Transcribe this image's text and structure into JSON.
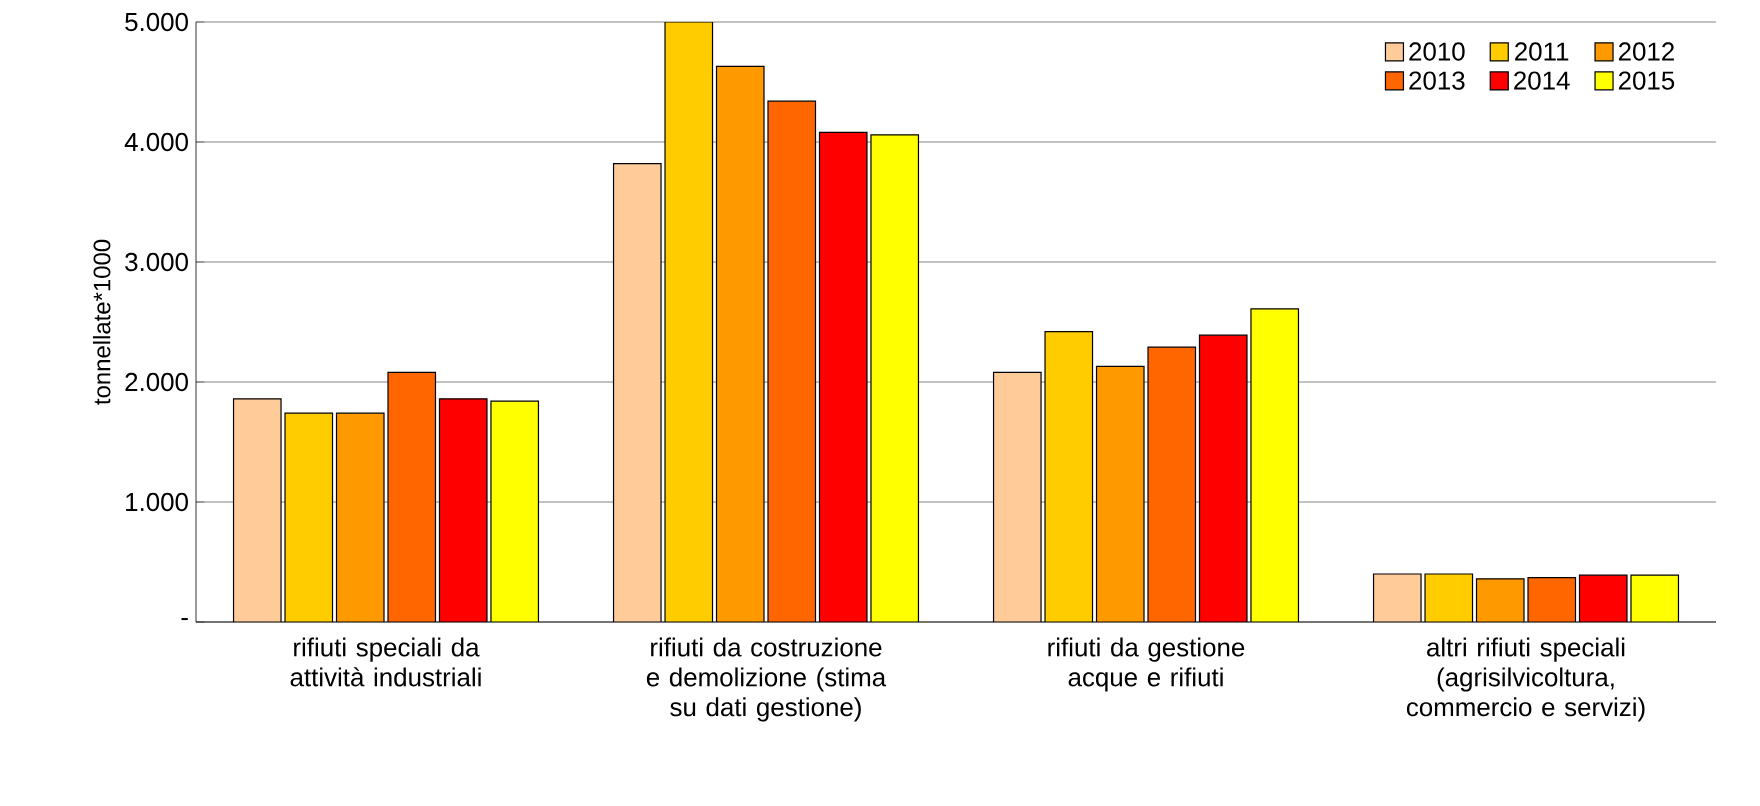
{
  "chart_data": {
    "type": "bar",
    "ylabel": "tonnellate*1000",
    "categories": [
      "rifiuti speciali da attività industriali",
      "rifiuti da costruzione e demolizione (stima su dati gestione)",
      "rifiuti da gestione acque e rifiuti",
      "altri rifiuti speciali (agrisilvicoltura, commercio e servizi)"
    ],
    "series": [
      {
        "name": "2010",
        "color": "#ffcc99",
        "values": [
          1860,
          3820,
          2080,
          400
        ]
      },
      {
        "name": "2011",
        "color": "#ffcc00",
        "values": [
          1740,
          5000,
          2420,
          400
        ]
      },
      {
        "name": "2012",
        "color": "#ff9900",
        "values": [
          1740,
          4630,
          2130,
          360
        ]
      },
      {
        "name": "2013",
        "color": "#ff6600",
        "values": [
          2080,
          4340,
          2290,
          370
        ]
      },
      {
        "name": "2014",
        "color": "#ff0000",
        "values": [
          1860,
          4080,
          2390,
          390
        ]
      },
      {
        "name": "2015",
        "color": "#ffff00",
        "values": [
          1840,
          4060,
          2610,
          390
        ]
      }
    ],
    "ylim": [
      0,
      5000
    ],
    "yticks": [
      {
        "value": 0,
        "label": "-"
      },
      {
        "value": 1000,
        "label": "1.000"
      },
      {
        "value": 2000,
        "label": "2.000"
      },
      {
        "value": 3000,
        "label": "3.000"
      },
      {
        "value": 4000,
        "label": "4.000"
      },
      {
        "value": 5000,
        "label": "5.000"
      }
    ],
    "grid": "y",
    "legend": "top right"
  }
}
